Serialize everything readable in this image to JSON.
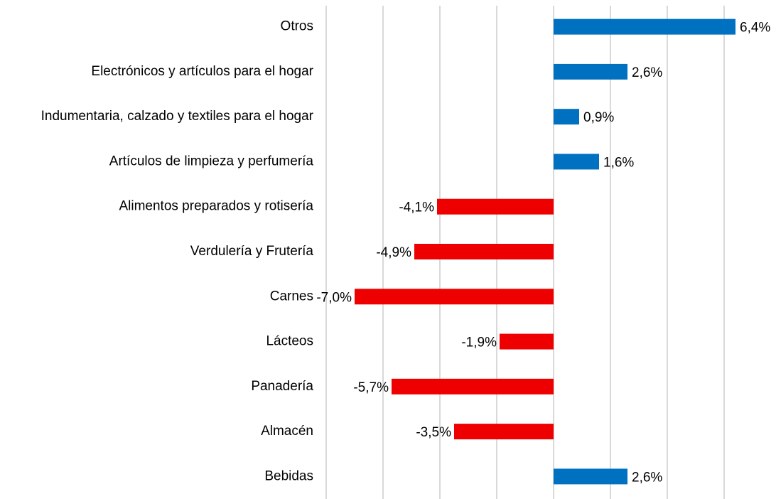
{
  "chart_data": {
    "type": "hbar",
    "categories": [
      "Otros",
      "Electrónicos y artículos para el hogar",
      "Indumentaria, calzado y textiles para el hogar",
      "Artículos de limpieza y perfumería",
      "Alimentos preparados y rotisería",
      "Verdulería y Frutería",
      "Carnes",
      "Lácteos",
      "Panadería",
      "Almacén",
      "Bebidas"
    ],
    "values": [
      6.4,
      2.6,
      0.9,
      1.6,
      -4.1,
      -4.9,
      -7.0,
      -1.9,
      -5.7,
      -3.5,
      2.6
    ],
    "value_labels": [
      "6,4%",
      "2,6%",
      "0,9%",
      "1,6%",
      "-4,1%",
      "-4,9%",
      "-7,0%",
      "-1,9%",
      "-5,7%",
      "-3,5%",
      "2,6%"
    ],
    "positive_color": "#0070c0",
    "negative_color": "#ee0000",
    "xlim": [
      -8,
      7.8
    ],
    "xticks": [
      -8,
      -6,
      -4,
      -2,
      0,
      2,
      4,
      6
    ],
    "grid": true
  }
}
